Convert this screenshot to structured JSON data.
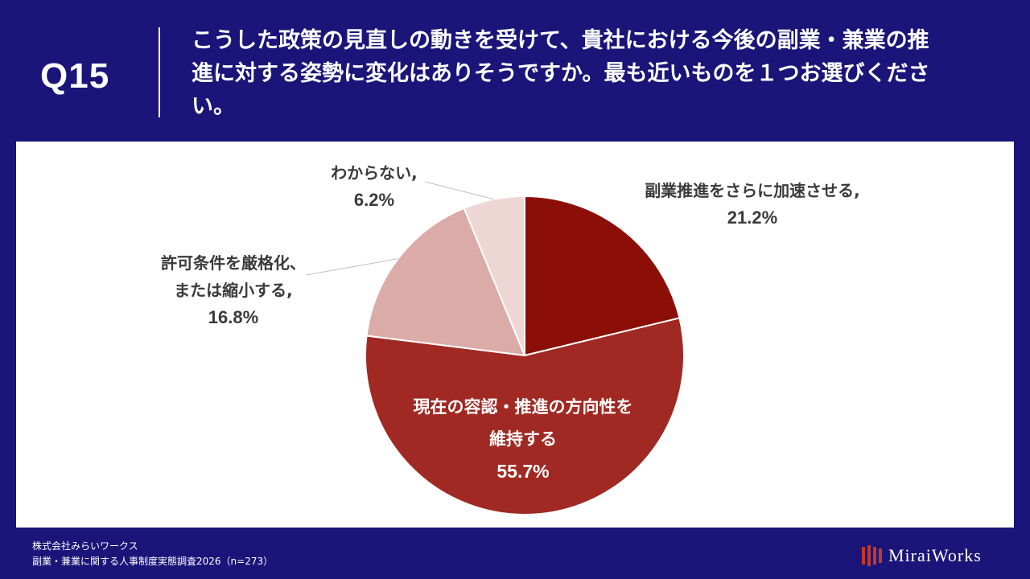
{
  "question": {
    "number": "Q15",
    "text": "こうした政策の見直しの動きを受けて、貴社における今後の副業・兼業の推進に対する姿勢に変化はありそうですか。最も近いものを１つお選びください。"
  },
  "footer": {
    "company": "株式会社みらいワークス",
    "survey": "副業・兼業に関する人事制度実態調査2026（n=273）"
  },
  "logo": {
    "text": "MiraiWorks"
  },
  "colors": {
    "background": "#1b1479",
    "panel": "#ffffff",
    "slices": [
      "#8b0f06",
      "#a02923",
      "#dbaba8",
      "#eed6d5"
    ]
  },
  "chart_data": {
    "type": "pie",
    "start_angle_deg": 0,
    "direction": "clockwise",
    "slices": [
      {
        "label_lines": [
          "副業推進をさらに加速させる,"
        ],
        "value": 21.2,
        "value_label": "21.2%"
      },
      {
        "label_lines": [
          "現在の容認・推進の方向性を",
          "維持する"
        ],
        "value": 55.7,
        "value_label": "55.7%"
      },
      {
        "label_lines": [
          "許可条件を厳格化、",
          "または縮小する,"
        ],
        "value": 16.8,
        "value_label": "16.8%"
      },
      {
        "label_lines": [
          "わからない,"
        ],
        "value": 6.2,
        "value_label": "6.2%"
      }
    ]
  }
}
